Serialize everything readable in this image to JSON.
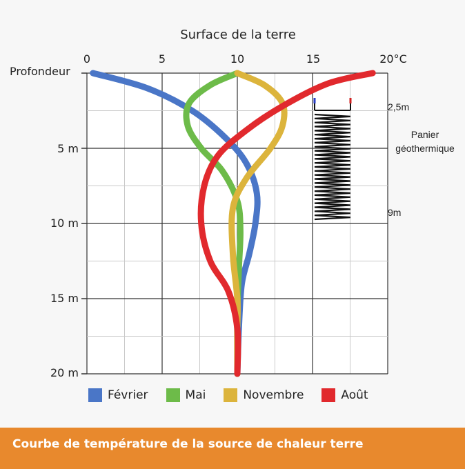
{
  "chart_data": {
    "type": "line",
    "title": "Surface de la terre",
    "xlabel": "",
    "ylabel": "Profondeur",
    "xlim": [
      0,
      20
    ],
    "ylim": [
      0,
      20
    ],
    "x_unit": "°C",
    "x_ticks": [
      "0",
      "5",
      "10",
      "15",
      "20°C"
    ],
    "y_ticks": [
      "5 m",
      "10 m",
      "15 m",
      "20 m"
    ],
    "y_reversed": true,
    "grid": true,
    "legend_position": "bottom",
    "series": [
      {
        "name": "Février",
        "color": "#4a76c7",
        "x": [
          0.4,
          4,
          7,
          9.2,
          10.6,
          11.3,
          11.2,
          10.8,
          10.3,
          10.1,
          10.0
        ],
        "y": [
          0,
          1,
          2.5,
          4.3,
          6,
          8,
          10,
          12,
          14,
          17,
          20
        ]
      },
      {
        "name": "Mai",
        "color": "#6dbb49",
        "x": [
          10,
          8.2,
          6.8,
          6.7,
          7.6,
          9,
          10,
          10.2,
          10.1,
          10.0,
          10.0
        ],
        "y": [
          0,
          0.8,
          2,
          3.5,
          5,
          6.5,
          8.5,
          10.5,
          13,
          16,
          20
        ]
      },
      {
        "name": "Novembre",
        "color": "#dcb43c",
        "x": [
          10,
          11.8,
          13,
          13,
          12.2,
          10.6,
          9.7,
          9.7,
          10.0,
          10.0,
          10.0
        ],
        "y": [
          0,
          0.8,
          2,
          3.5,
          5,
          7,
          9,
          12,
          15,
          17,
          20
        ]
      },
      {
        "name": "Août",
        "color": "#e1292d",
        "x": [
          19.0,
          16,
          13,
          10.6,
          8.7,
          7.8,
          7.6,
          8.2,
          9.4,
          10.0,
          10.0
        ],
        "y": [
          0,
          0.7,
          2.2,
          3.8,
          5.5,
          7.5,
          10,
          12.5,
          14.5,
          17,
          20
        ]
      }
    ],
    "annotations": [
      "2,5m",
      "Panier géothermique",
      "9m"
    ]
  },
  "footer": {
    "text": "Courbe de température de la source de chaleur terre"
  }
}
